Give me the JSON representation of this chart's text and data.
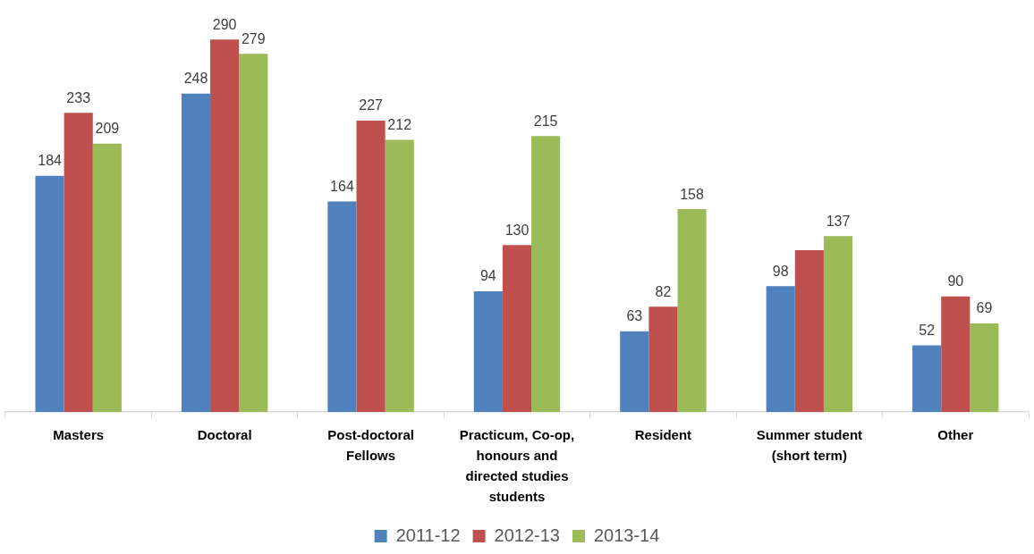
{
  "chart_data": {
    "type": "bar",
    "categories": [
      "Masters",
      "Doctoral",
      "Post-doctoral Fellows",
      "Practicum, Co-op, honours and directed studies students",
      "Resident",
      "Summer student (short term)",
      "Other"
    ],
    "series": [
      {
        "name": "2011-12",
        "color": "#4f81bd",
        "values": [
          184,
          248,
          164,
          94,
          63,
          98,
          52
        ],
        "value_labels": [
          "184",
          "248",
          "164",
          "94",
          "63",
          "98",
          "52"
        ]
      },
      {
        "name": "2012-13",
        "color": "#c0504d",
        "values": [
          233,
          290,
          227,
          130,
          82,
          126,
          90
        ],
        "value_labels": [
          "233",
          "290",
          "227",
          "130",
          "82",
          null,
          "90"
        ]
      },
      {
        "name": "2013-14",
        "color": "#9bbb59",
        "values": [
          209,
          279,
          212,
          215,
          158,
          137,
          69
        ],
        "value_labels": [
          "209",
          "279",
          "212",
          "215",
          "158",
          "137",
          "69"
        ]
      }
    ],
    "legend": "bottom",
    "grid": false
  }
}
